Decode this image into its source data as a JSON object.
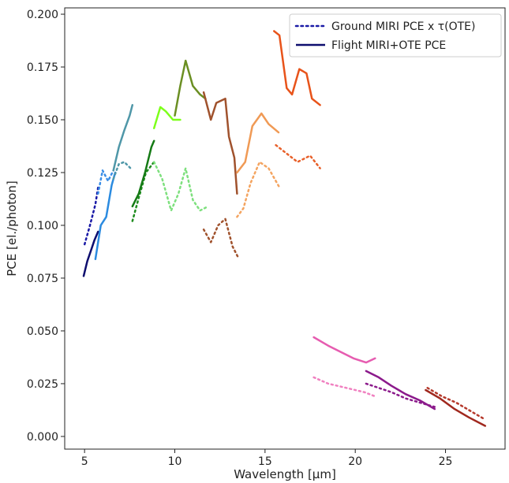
{
  "chart_data": {
    "type": "line",
    "xlabel": "Wavelength [µm]",
    "ylabel": "PCE [el./photon]",
    "xlim": [
      3.9,
      28.3
    ],
    "ylim": [
      -0.006,
      0.203
    ],
    "xticks": [
      5,
      10,
      15,
      20,
      25
    ],
    "xtick_labels": [
      "5",
      "10",
      "15",
      "20",
      "25"
    ],
    "yticks": [
      0.0,
      0.025,
      0.05,
      0.075,
      0.1,
      0.125,
      0.15,
      0.175,
      0.2
    ],
    "ytick_labels": [
      "0.000",
      "0.025",
      "0.050",
      "0.075",
      "0.100",
      "0.125",
      "0.150",
      "0.175",
      "0.200"
    ],
    "grid": false,
    "legend_position": "top-right",
    "legend": [
      {
        "label": "Ground MIRI PCE x τ(OTE)",
        "style": "dotted",
        "color": "#1a1aa6"
      },
      {
        "label": "Flight MIRI+OTE PCE",
        "style": "solid",
        "color": "#0d0d6e"
      }
    ],
    "series": [
      {
        "style": "dotted",
        "color": "#1a1aa6",
        "x": [
          5.0,
          5.3,
          5.6,
          5.75
        ],
        "y": [
          0.091,
          0.1,
          0.11,
          0.118
        ]
      },
      {
        "style": "solid",
        "color": "#0d0d6e",
        "x": [
          4.95,
          5.15,
          5.35,
          5.55,
          5.75
        ],
        "y": [
          0.076,
          0.083,
          0.088,
          0.093,
          0.097
        ]
      },
      {
        "style": "dotted",
        "color": "#3b8ee6",
        "x": [
          5.75,
          6.0,
          6.3,
          6.6
        ],
        "y": [
          0.115,
          0.126,
          0.121,
          0.126
        ]
      },
      {
        "style": "solid",
        "color": "#2b8be0",
        "x": [
          5.6,
          5.9,
          6.2,
          6.5,
          6.7
        ],
        "y": [
          0.084,
          0.1,
          0.104,
          0.119,
          0.125
        ]
      },
      {
        "style": "dotted",
        "color": "#4f97a8",
        "x": [
          6.6,
          6.9,
          7.2,
          7.55
        ],
        "y": [
          0.122,
          0.129,
          0.13,
          0.127
        ]
      },
      {
        "style": "solid",
        "color": "#4f97a8",
        "x": [
          6.6,
          6.9,
          7.2,
          7.5,
          7.65
        ],
        "y": [
          0.126,
          0.137,
          0.145,
          0.152,
          0.157
        ]
      },
      {
        "style": "dotted",
        "color": "#1f8c1f",
        "x": [
          7.65,
          8.0,
          8.4,
          8.85
        ],
        "y": [
          0.102,
          0.113,
          0.125,
          0.13
        ]
      },
      {
        "style": "solid",
        "color": "#157a15",
        "x": [
          7.65,
          8.0,
          8.35,
          8.7,
          8.85
        ],
        "y": [
          0.109,
          0.115,
          0.125,
          0.137,
          0.14
        ]
      },
      {
        "style": "dotted",
        "color": "#7ee07e",
        "x": [
          8.85,
          9.3,
          9.8,
          10.2,
          10.6,
          11.0,
          11.4,
          11.85
        ],
        "y": [
          0.13,
          0.122,
          0.107,
          0.115,
          0.127,
          0.112,
          0.107,
          0.109
        ]
      },
      {
        "style": "solid",
        "color": "#7dff1a",
        "x": [
          8.85,
          9.2,
          9.5,
          9.9,
          10.3
        ],
        "y": [
          0.146,
          0.156,
          0.154,
          0.15,
          0.15
        ]
      },
      {
        "style": "solid",
        "color": "#6b8f23",
        "x": [
          10.0,
          10.3,
          10.6,
          11.0,
          11.4,
          11.7
        ],
        "y": [
          0.152,
          0.166,
          0.178,
          0.166,
          0.162,
          0.16
        ]
      },
      {
        "style": "dotted",
        "color": "#a0522d",
        "x": [
          11.6,
          12.0,
          12.4,
          12.8,
          13.2,
          13.5
        ],
        "y": [
          0.098,
          0.092,
          0.1,
          0.103,
          0.09,
          0.085
        ]
      },
      {
        "style": "solid",
        "color": "#a0522d",
        "x": [
          11.6,
          12.0,
          12.3,
          12.8,
          13.0,
          13.3,
          13.45
        ],
        "y": [
          0.163,
          0.15,
          0.158,
          0.16,
          0.142,
          0.132,
          0.115
        ]
      },
      {
        "style": "dotted",
        "color": "#f4a460",
        "x": [
          13.45,
          13.8,
          14.2,
          14.7,
          15.2,
          15.8
        ],
        "y": [
          0.104,
          0.108,
          0.12,
          0.13,
          0.127,
          0.118
        ]
      },
      {
        "style": "solid",
        "color": "#f09a55",
        "x": [
          13.45,
          13.9,
          14.3,
          14.8,
          15.2,
          15.75
        ],
        "y": [
          0.125,
          0.13,
          0.147,
          0.153,
          0.148,
          0.144
        ]
      },
      {
        "style": "dotted",
        "color": "#e8602a",
        "x": [
          15.6,
          16.2,
          16.8,
          17.5,
          18.05
        ],
        "y": [
          0.138,
          0.134,
          0.13,
          0.133,
          0.127
        ]
      },
      {
        "style": "solid",
        "color": "#e8531a",
        "x": [
          15.5,
          15.8,
          16.2,
          16.5,
          16.9,
          17.3,
          17.6,
          18.05
        ],
        "y": [
          0.192,
          0.19,
          0.165,
          0.162,
          0.174,
          0.172,
          0.16,
          0.157
        ]
      },
      {
        "style": "dotted",
        "color": "#f080c0",
        "x": [
          17.7,
          18.5,
          19.5,
          20.5,
          21.1
        ],
        "y": [
          0.028,
          0.025,
          0.023,
          0.021,
          0.019
        ]
      },
      {
        "style": "solid",
        "color": "#e65cb0",
        "x": [
          17.7,
          18.5,
          19.2,
          19.9,
          20.6,
          21.1
        ],
        "y": [
          0.047,
          0.043,
          0.04,
          0.037,
          0.035,
          0.037
        ]
      },
      {
        "style": "dotted",
        "color": "#8b1a8b",
        "x": [
          20.6,
          21.3,
          22.0,
          22.8,
          23.6,
          24.4
        ],
        "y": [
          0.025,
          0.023,
          0.021,
          0.018,
          0.016,
          0.014
        ]
      },
      {
        "style": "solid",
        "color": "#8b1a8b",
        "x": [
          20.6,
          21.3,
          22.0,
          22.8,
          23.6,
          24.4
        ],
        "y": [
          0.031,
          0.028,
          0.024,
          0.02,
          0.017,
          0.013
        ]
      },
      {
        "style": "dotted",
        "color": "#b5382a",
        "x": [
          24.0,
          24.8,
          25.6,
          26.4,
          27.2
        ],
        "y": [
          0.023,
          0.019,
          0.016,
          0.012,
          0.008
        ]
      },
      {
        "style": "solid",
        "color": "#a0281e",
        "x": [
          23.9,
          24.7,
          25.5,
          26.3,
          27.2
        ],
        "y": [
          0.022,
          0.018,
          0.013,
          0.009,
          0.005
        ]
      }
    ]
  }
}
